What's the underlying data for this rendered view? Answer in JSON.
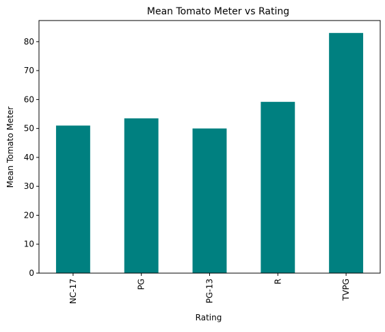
{
  "chart_data": {
    "type": "bar",
    "title": "Mean Tomato Meter vs Rating",
    "xlabel": "Rating",
    "ylabel": "Mean Tomato Meter",
    "categories": [
      "NC-17",
      "PG",
      "PG-13",
      "R",
      "TVPG"
    ],
    "values": [
      51.0,
      53.5,
      50.0,
      59.2,
      83.0
    ],
    "ylim": [
      0,
      87.3
    ],
    "yticks": [
      0,
      10,
      20,
      30,
      40,
      50,
      60,
      70,
      80
    ],
    "bar_color": "#008080",
    "grid": false,
    "legend": "none",
    "xtick_rotation": "vertical"
  }
}
